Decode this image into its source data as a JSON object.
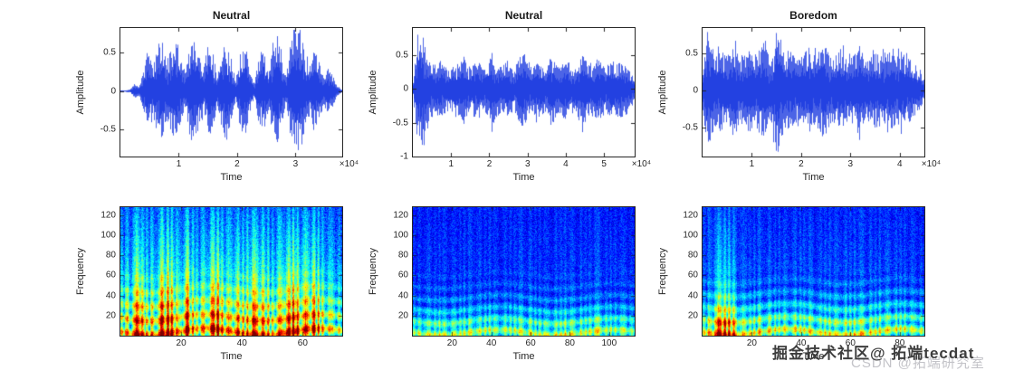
{
  "figure": {
    "background": "#ffffff",
    "watermark_primary": "掘金技术社区@ 拓端tecdat",
    "watermark_secondary": "CSDN @拓端研究室"
  },
  "chart_data": [
    {
      "type": "line",
      "chart": "waveform",
      "title": "Neutral",
      "xlabel": "Time",
      "ylabel": "Amplitude",
      "x_multiplier": "×10⁴",
      "xlim": [
        0,
        3.8
      ],
      "xticks": [
        1,
        2,
        3
      ],
      "ylim": [
        -0.85,
        0.82
      ],
      "yticks": [
        0.5,
        0,
        -0.5
      ],
      "line_color": "#1f3de0",
      "grid": false,
      "seed": 11,
      "neg_scale": 0.95,
      "envelope": [
        0.01,
        0.01,
        0.02,
        0.1,
        0.06,
        0.3,
        0.52,
        0.35,
        0.6,
        0.68,
        0.4,
        0.55,
        0.72,
        0.45,
        0.25,
        0.62,
        0.78,
        0.48,
        0.3,
        0.66,
        0.5,
        0.22,
        0.58,
        0.7,
        0.38,
        0.15,
        0.52,
        0.64,
        0.32,
        0.1,
        0.48,
        0.6,
        0.28,
        0.55,
        0.74,
        0.42,
        0.2,
        0.68,
        0.9,
        0.85,
        0.5,
        0.3,
        0.56,
        0.4,
        0.18,
        0.3,
        0.22,
        0.08,
        0.02
      ]
    },
    {
      "type": "line",
      "chart": "waveform",
      "title": "Neutral",
      "xlabel": "Time",
      "ylabel": "Amplitude",
      "x_multiplier": "×10⁴",
      "xlim": [
        0,
        5.8
      ],
      "xticks": [
        1,
        2,
        3,
        4,
        5
      ],
      "ylim": [
        -1,
        0.9
      ],
      "yticks": [
        0.5,
        0,
        -0.5,
        -1
      ],
      "line_color": "#1f3de0",
      "grid": false,
      "seed": 22,
      "neg_scale": 1.12,
      "envelope": [
        0.1,
        0.88,
        0.95,
        0.5,
        0.38,
        0.35,
        0.42,
        0.33,
        0.3,
        0.4,
        0.35,
        0.48,
        0.32,
        0.36,
        0.44,
        0.3,
        0.34,
        0.52,
        0.38,
        0.32,
        0.4,
        0.34,
        0.3,
        0.46,
        0.55,
        0.36,
        0.32,
        0.42,
        0.35,
        0.3,
        0.5,
        0.38,
        0.33,
        0.44,
        0.36,
        0.3,
        0.42,
        0.52,
        0.36,
        0.32,
        0.45,
        0.38,
        0.33,
        0.48,
        0.36,
        0.4,
        0.34,
        0.28,
        0.18
      ]
    },
    {
      "type": "line",
      "chart": "waveform",
      "title": "Boredom",
      "xlabel": "Time",
      "ylabel": "Amplitude",
      "x_multiplier": "×10⁴",
      "xlim": [
        0,
        4.5
      ],
      "xticks": [
        1,
        2,
        3,
        4
      ],
      "ylim": [
        -0.9,
        0.85
      ],
      "yticks": [
        0.5,
        0,
        -0.5
      ],
      "line_color": "#1f3de0",
      "grid": false,
      "seed": 33,
      "neg_scale": 1.0,
      "envelope": [
        0.25,
        0.85,
        0.6,
        0.5,
        0.58,
        0.45,
        0.52,
        0.62,
        0.42,
        0.5,
        0.6,
        0.48,
        0.55,
        0.7,
        0.52,
        0.46,
        0.88,
        0.66,
        0.5,
        0.58,
        0.46,
        0.42,
        0.52,
        0.62,
        0.48,
        0.52,
        0.68,
        0.56,
        0.46,
        0.5,
        0.58,
        0.48,
        0.42,
        0.52,
        0.64,
        0.46,
        0.44,
        0.56,
        0.52,
        0.46,
        0.62,
        0.52,
        0.46,
        0.54,
        0.48,
        0.42,
        0.36,
        0.28,
        0.15
      ]
    },
    {
      "type": "heatmap",
      "chart": "spectrogram",
      "colormap": "jet",
      "title": "",
      "xlabel": "Time",
      "ylabel": "Frequency",
      "xlim": [
        0,
        73
      ],
      "xticks": [
        20,
        40,
        60
      ],
      "ylim": [
        0,
        128
      ],
      "yticks": [
        20,
        40,
        60,
        80,
        100,
        120
      ],
      "seed": 44,
      "harmonic_count": 9,
      "harmonic_strength": 0.22,
      "burst_boost": 0.9,
      "noise": 0.2,
      "freq_profile": [
        0.95,
        0.92,
        0.85,
        0.78,
        0.72,
        0.66,
        0.6,
        0.55,
        0.5,
        0.46,
        0.42,
        0.4,
        0.38,
        0.36,
        0.34,
        0.32,
        0.3
      ],
      "time_profile": [
        0.5,
        0.7,
        0.9,
        0.6,
        0.85,
        0.95,
        0.7,
        0.9,
        0.6,
        0.8,
        0.95,
        0.65,
        0.85,
        0.7,
        0.9,
        0.8,
        0.6,
        0.85,
        0.95,
        0.75,
        0.9,
        0.7,
        0.5,
        0.4
      ]
    },
    {
      "type": "heatmap",
      "chart": "spectrogram",
      "colormap": "jet",
      "title": "",
      "xlabel": "Time",
      "ylabel": "Frequency",
      "xlim": [
        0,
        113
      ],
      "xticks": [
        20,
        40,
        60,
        80,
        100
      ],
      "ylim": [
        0,
        128
      ],
      "yticks": [
        20,
        40,
        60,
        80,
        100,
        120
      ],
      "seed": 55,
      "harmonic_count": 11,
      "harmonic_strength": 0.14,
      "burst_boost": 0.25,
      "noise": 0.17,
      "freq_profile": [
        0.85,
        0.75,
        0.6,
        0.45,
        0.35,
        0.3,
        0.27,
        0.25,
        0.24,
        0.23,
        0.22,
        0.22,
        0.21,
        0.21,
        0.2,
        0.2,
        0.2
      ],
      "time_profile": [
        0.4,
        0.5,
        0.45,
        0.55,
        0.5,
        0.45,
        0.6,
        0.5,
        0.55,
        0.45,
        0.5,
        0.6,
        0.55,
        0.5,
        0.45,
        0.55,
        0.6,
        0.5,
        0.55,
        0.65,
        0.5,
        0.45,
        0.5,
        0.4
      ]
    },
    {
      "type": "heatmap",
      "chart": "spectrogram",
      "colormap": "jet",
      "title": "",
      "xlabel": "Time",
      "ylabel": "Frequency",
      "xlim": [
        0,
        90
      ],
      "xticks": [
        20,
        40,
        60,
        80
      ],
      "ylim": [
        0,
        128
      ],
      "yticks": [
        20,
        40,
        60,
        80,
        100,
        120
      ],
      "seed": 66,
      "harmonic_count": 10,
      "harmonic_strength": 0.18,
      "burst_boost": 0.8,
      "noise": 0.17,
      "freq_profile": [
        0.9,
        0.85,
        0.7,
        0.55,
        0.45,
        0.38,
        0.33,
        0.3,
        0.28,
        0.27,
        0.26,
        0.25,
        0.24,
        0.24,
        0.23,
        0.22,
        0.22
      ],
      "time_profile": [
        0.5,
        0.8,
        0.95,
        0.9,
        0.6,
        0.5,
        0.55,
        0.5,
        0.45,
        0.5,
        0.55,
        0.5,
        0.45,
        0.5,
        0.45,
        0.5,
        0.55,
        0.45,
        0.5,
        0.45,
        0.5,
        0.45,
        0.4,
        0.35
      ]
    }
  ]
}
